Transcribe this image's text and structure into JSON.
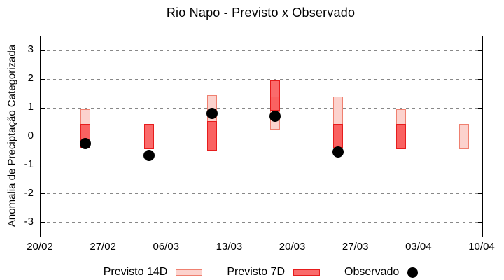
{
  "title": "Rio Napo - Previsto x Observado",
  "chart_data": {
    "type": "bar",
    "subtype": "range-bars-with-observed-points",
    "title": "Rio Napo - Previsto x Observado",
    "xlabel": "",
    "ylabel": "Anomalia de Preciptação Categorizada",
    "ylim": [
      -3.5,
      3.5
    ],
    "grid": "horizontal-dashed",
    "y_ticks": [
      3,
      2,
      1,
      0,
      -1,
      -2,
      -3
    ],
    "x_ticks": [
      {
        "day": 0,
        "label": "20/02"
      },
      {
        "day": 7,
        "label": "27/02"
      },
      {
        "day": 14,
        "label": "06/03"
      },
      {
        "day": 21,
        "label": "13/03"
      },
      {
        "day": 28,
        "label": "20/03"
      },
      {
        "day": 35,
        "label": "27/03"
      },
      {
        "day": 42,
        "label": "03/04"
      },
      {
        "day": 49,
        "label": "10/04"
      }
    ],
    "x_range_days": [
      0,
      49
    ],
    "series": [
      {
        "name": "Previsto 14D",
        "type": "range-bar",
        "fill": "#fcd2cd",
        "border": "#ef8070"
      },
      {
        "name": "Previsto 7D",
        "type": "range-bar",
        "fill": "rgba(249,70,70,0.8)",
        "border": "#e61d1d"
      },
      {
        "name": "Observado",
        "type": "point",
        "fill": "#000000"
      }
    ],
    "points": [
      {
        "date": "25/02",
        "day": 5,
        "previsto_14d": [
          -0.4,
          0.95
        ],
        "previsto_7d": [
          -0.4,
          0.45
        ],
        "observado": -0.25
      },
      {
        "date": "04/03",
        "day": 12,
        "previsto_14d": null,
        "previsto_7d": [
          -0.45,
          0.45
        ],
        "observado": -0.65
      },
      {
        "date": "11/03",
        "day": 19,
        "previsto_14d": [
          -0.5,
          1.45
        ],
        "previsto_7d": [
          -0.5,
          0.55
        ],
        "observado": 0.8
      },
      {
        "date": "18/03",
        "day": 26,
        "previsto_14d": [
          0.25,
          1.4
        ],
        "previsto_7d": [
          0.9,
          1.95
        ],
        "observado": 0.7
      },
      {
        "date": "25/03",
        "day": 33,
        "previsto_14d": [
          -0.4,
          1.4
        ],
        "previsto_7d": [
          -0.4,
          0.45
        ],
        "observado": -0.55
      },
      {
        "date": "01/04",
        "day": 40,
        "previsto_14d": [
          -0.45,
          0.95
        ],
        "previsto_7d": [
          -0.45,
          0.45
        ],
        "observado": null
      },
      {
        "date": "08/04",
        "day": 47,
        "previsto_14d": [
          -0.45,
          0.45
        ],
        "previsto_7d": null,
        "observado": null
      }
    ]
  },
  "legend": {
    "previsto_14d_label": "Previsto 14D",
    "previsto_7d_label": "Previsto 7D",
    "observado_label": "Observado"
  },
  "colors": {
    "previsto_14d_fill": "#fcd2cd",
    "previsto_14d_border": "#ef8070",
    "previsto_7d_fill": "rgba(249,70,70,0.8)",
    "previsto_7d_border": "#e61d1d",
    "observado": "#000000",
    "grid": "#888888",
    "axis": "#000000"
  }
}
